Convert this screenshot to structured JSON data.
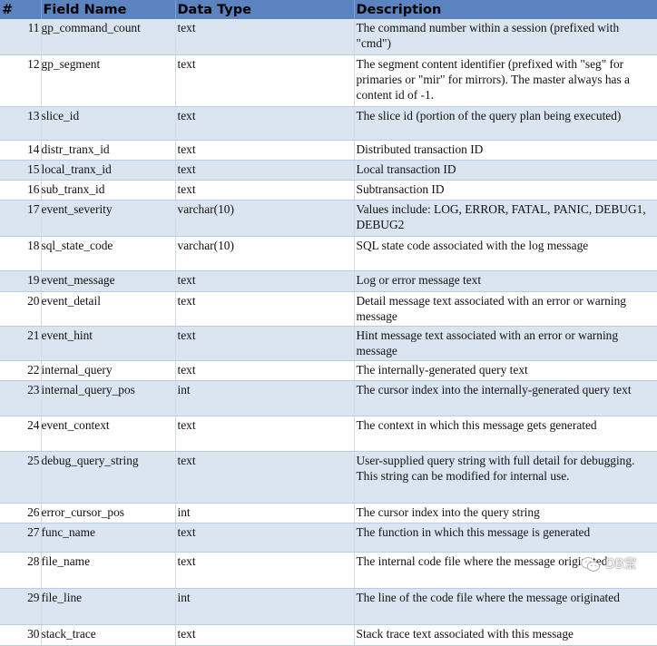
{
  "table": {
    "headers": [
      "#",
      "Field Name",
      "Data Type",
      "Description"
    ],
    "rows": [
      {
        "num": "11",
        "field": "gp_command_count",
        "type": "text",
        "desc": "The command number within a session (prefixed with \"cmd\")"
      },
      {
        "num": "12",
        "field": "gp_segment",
        "type": "text",
        "desc": "The segment content identifier (prefixed with \"seg\" for primaries or \"mir\" for mirrors). The master always has a content id of -1."
      },
      {
        "num": "13",
        "field": "slice_id",
        "type": "text",
        "desc": "The slice id (portion of the query plan being executed)"
      },
      {
        "num": "14",
        "field": "distr_tranx_id",
        "type": "text",
        "desc": "Distributed transaction ID"
      },
      {
        "num": "15",
        "field": "local_tranx_id",
        "type": "text",
        "desc": "Local transaction ID"
      },
      {
        "num": "16",
        "field": "sub_tranx_id",
        "type": "text",
        "desc": "Subtransaction ID"
      },
      {
        "num": "17",
        "field": "event_severity",
        "type": "varchar(10)",
        "desc": "Values include: LOG, ERROR, FATAL, PANIC, DEBUG1, DEBUG2"
      },
      {
        "num": "18",
        "field": "sql_state_code",
        "type": "varchar(10)",
        "desc": "SQL state code associated with the log message"
      },
      {
        "num": "19",
        "field": "event_message",
        "type": "text",
        "desc": "Log or error message text"
      },
      {
        "num": "20",
        "field": "event_detail",
        "type": "text",
        "desc": "Detail message text associated with an error or warning message"
      },
      {
        "num": "21",
        "field": "event_hint",
        "type": "text",
        "desc": "Hint message text associated with an error or warning message"
      },
      {
        "num": "22",
        "field": "internal_query",
        "type": "text",
        "desc": "The internally-generated query text"
      },
      {
        "num": "23",
        "field": "internal_query_pos",
        "type": "int",
        "desc": "The cursor index into the internally-generated query text"
      },
      {
        "num": "24",
        "field": "event_context",
        "type": "text",
        "desc": "The context in which this message gets generated"
      },
      {
        "num": "25",
        "field": "debug_query_string",
        "type": "text",
        "desc": "User-supplied query string with full detail for debugging. This string can be modified for internal use."
      },
      {
        "num": "26",
        "field": "error_cursor_pos",
        "type": "int",
        "desc": "The cursor index into the query string"
      },
      {
        "num": "27",
        "field": "func_name",
        "type": "text",
        "desc": "The function in which this message is generated"
      },
      {
        "num": "28",
        "field": "file_name",
        "type": "text",
        "desc": "The internal code file where the message originated"
      },
      {
        "num": "29",
        "field": "file_line",
        "type": "int",
        "desc": "The line of the code file where the message originated"
      },
      {
        "num": "30",
        "field": "stack_trace",
        "type": "text",
        "desc": "Stack trace text associated with this message"
      }
    ]
  },
  "watermark": {
    "text": "DB宝",
    "icon": "wechat-icon"
  },
  "colors": {
    "header": "#5a83c0",
    "row_alt": "#dbe5f1"
  }
}
